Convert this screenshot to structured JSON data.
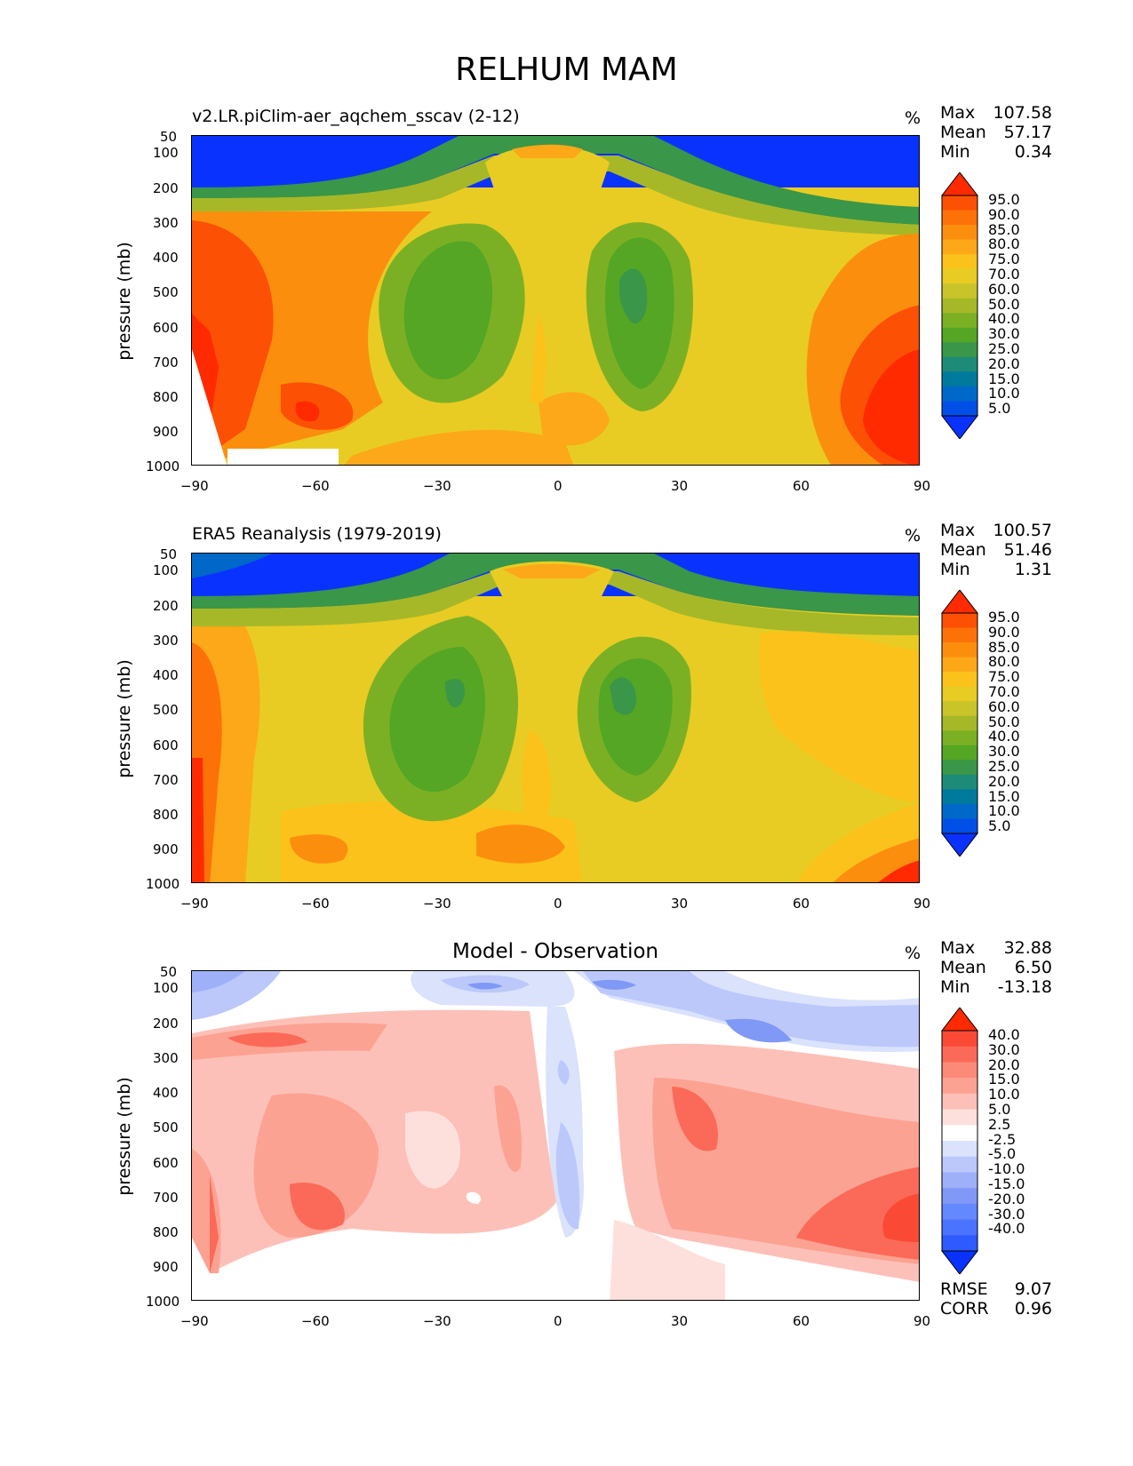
{
  "figure": {
    "title": "RELHUM MAM"
  },
  "panels": [
    {
      "id": "model",
      "left_title": "v2.LR.piClim-aer_aqchem_sscav (2-12)",
      "center_title": "",
      "unit": "%",
      "stats": {
        "max_label": "Max",
        "max": "107.58",
        "mean_label": "Mean",
        "mean": "57.17",
        "min_label": "Min",
        "min": "0.34"
      },
      "ylabel": "pressure (mb)",
      "colorbar_labels": [
        "95.0",
        "90.0",
        "85.0",
        "80.0",
        "75.0",
        "70.0",
        "60.0",
        "50.0",
        "40.0",
        "30.0",
        "25.0",
        "20.0",
        "15.0",
        "10.0",
        "5.0"
      ]
    },
    {
      "id": "obs",
      "left_title": "ERA5 Reanalysis (1979-2019)",
      "center_title": "",
      "unit": "%",
      "stats": {
        "max_label": "Max",
        "max": "100.57",
        "mean_label": "Mean",
        "mean": "51.46",
        "min_label": "Min",
        "min": "1.31"
      },
      "ylabel": "pressure (mb)",
      "colorbar_labels": [
        "95.0",
        "90.0",
        "85.0",
        "80.0",
        "75.0",
        "70.0",
        "60.0",
        "50.0",
        "40.0",
        "30.0",
        "25.0",
        "20.0",
        "15.0",
        "10.0",
        "5.0"
      ]
    },
    {
      "id": "diff",
      "left_title": "",
      "center_title": "Model - Observation",
      "unit": "%",
      "stats": {
        "max_label": "Max",
        "max": "32.88",
        "mean_label": "Mean",
        "mean": "6.50",
        "min_label": "Min",
        "min": "-13.18"
      },
      "ylabel": "pressure (mb)",
      "colorbar_labels": [
        "40.0",
        "30.0",
        "20.0",
        "15.0",
        "10.0",
        "5.0",
        "2.5",
        "-2.5",
        "-5.0",
        "-10.0",
        "-15.0",
        "-20.0",
        "-30.0",
        "-40.0"
      ],
      "metrics": {
        "rmse_label": "RMSE",
        "rmse": "9.07",
        "corr_label": "CORR",
        "corr": "0.96"
      }
    }
  ],
  "axes": {
    "x_ticks": [
      "−90",
      "−60",
      "−30",
      "0",
      "30",
      "60",
      "90"
    ],
    "y_ticks": [
      "50",
      "100",
      "200",
      "300",
      "400",
      "500",
      "600",
      "700",
      "800",
      "900",
      "1000"
    ]
  },
  "colors": {
    "abs_scale": [
      "#0a32ff",
      "#0050e8",
      "#0068c8",
      "#007a9c",
      "#1e8a78",
      "#3a9648",
      "#54a624",
      "#7cb024",
      "#a6b828",
      "#c8c42a",
      "#e8cc24",
      "#fac21a",
      "#fca818",
      "#fc8e0e",
      "#fc7208",
      "#fc5004",
      "#ff2a00"
    ],
    "diff_scale": [
      "#0a32ff",
      "#2d5bff",
      "#4a73ff",
      "#6388ff",
      "#8098f6",
      "#9eb0f8",
      "#bcc8fa",
      "#dae2fc",
      "#ffffff",
      "#fde0dc",
      "#fcc0b8",
      "#fca292",
      "#fc8a78",
      "#fb6a58",
      "#fa4a36",
      "#ff2a00"
    ]
  },
  "chart_data": [
    {
      "type": "heatmap",
      "title": "v2.LR.piClim-aer_aqchem_sscav (2-12)",
      "xlabel": "",
      "ylabel": "pressure (mb)",
      "xlim": [
        -90,
        90
      ],
      "ylim": [
        1000,
        50
      ],
      "x_ticks": [
        -90,
        -60,
        -30,
        0,
        30,
        60,
        90
      ],
      "y_ticks": [
        50,
        100,
        200,
        300,
        400,
        500,
        600,
        700,
        800,
        900,
        1000
      ],
      "levels": [
        5,
        10,
        15,
        20,
        25,
        30,
        40,
        50,
        60,
        70,
        75,
        80,
        85,
        90,
        95
      ],
      "unit": "%",
      "max": 107.58,
      "mean": 57.17,
      "min": 0.34
    },
    {
      "type": "heatmap",
      "title": "ERA5 Reanalysis (1979-2019)",
      "xlabel": "",
      "ylabel": "pressure (mb)",
      "xlim": [
        -90,
        90
      ],
      "ylim": [
        1000,
        50
      ],
      "x_ticks": [
        -90,
        -60,
        -30,
        0,
        30,
        60,
        90
      ],
      "y_ticks": [
        50,
        100,
        200,
        300,
        400,
        500,
        600,
        700,
        800,
        900,
        1000
      ],
      "levels": [
        5,
        10,
        15,
        20,
        25,
        30,
        40,
        50,
        60,
        70,
        75,
        80,
        85,
        90,
        95
      ],
      "unit": "%",
      "max": 100.57,
      "mean": 51.46,
      "min": 1.31
    },
    {
      "type": "heatmap",
      "title": "Model - Observation",
      "xlabel": "",
      "ylabel": "pressure (mb)",
      "xlim": [
        -90,
        90
      ],
      "ylim": [
        1000,
        50
      ],
      "x_ticks": [
        -90,
        -60,
        -30,
        0,
        30,
        60,
        90
      ],
      "y_ticks": [
        50,
        100,
        200,
        300,
        400,
        500,
        600,
        700,
        800,
        900,
        1000
      ],
      "levels": [
        -40,
        -30,
        -20,
        -15,
        -10,
        -5,
        -2.5,
        2.5,
        5,
        10,
        15,
        20,
        30,
        40
      ],
      "unit": "%",
      "max": 32.88,
      "mean": 6.5,
      "min": -13.18,
      "rmse": 9.07,
      "corr": 0.96
    }
  ]
}
